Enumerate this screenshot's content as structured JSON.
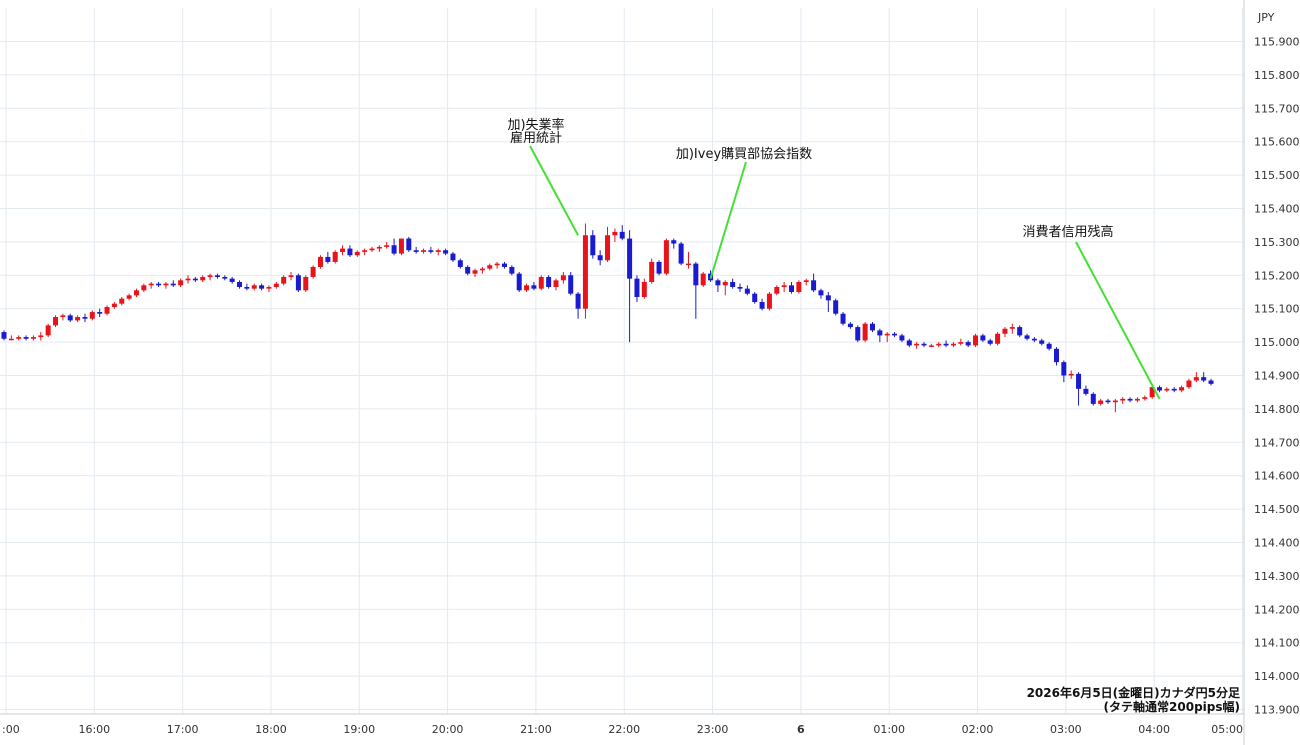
{
  "chart_data": {
    "type": "candlestick",
    "currency_label": "JPY",
    "caption_lines": [
      "2026年6月5日(金曜日)カナダ円5分足",
      "(タテ軸通常200pips幅)"
    ],
    "ylim": [
      113.9,
      115.95
    ],
    "y_ticks": [
      "115.900",
      "115.800",
      "115.700",
      "115.600",
      "115.500",
      "115.400",
      "115.300",
      "115.200",
      "115.100",
      "115.000",
      "114.900",
      "114.800",
      "114.700",
      "114.600",
      "114.500",
      "114.400",
      "114.300",
      "114.200",
      "114.100",
      "114.000",
      "113.900"
    ],
    "x_ticks": [
      ":00",
      "16:00",
      "17:00",
      "18:00",
      "19:00",
      "20:00",
      "21:00",
      "22:00",
      "23:00",
      "6",
      "01:00",
      "02:00",
      "03:00",
      "04:00",
      "05:00"
    ],
    "x_tick_indices": [
      0,
      12,
      24,
      36,
      48,
      60,
      72,
      84,
      96,
      108,
      120,
      132,
      144,
      156,
      168
    ],
    "colors": {
      "up": "#e8141c",
      "down": "#1a1ad0",
      "annotation_line": "#44e033",
      "grid": "#e3eaf0"
    },
    "candles": [
      [
        115.03,
        115.035,
        115.005,
        115.01
      ],
      [
        115.01,
        115.02,
        115.005,
        115.01
      ],
      [
        115.01,
        115.02,
        115.005,
        115.015
      ],
      [
        115.015,
        115.02,
        115.005,
        115.01
      ],
      [
        115.01,
        115.02,
        115.005,
        115.015
      ],
      [
        115.015,
        115.03,
        115.005,
        115.02
      ],
      [
        115.02,
        115.055,
        115.015,
        115.05
      ],
      [
        115.05,
        115.08,
        115.045,
        115.075
      ],
      [
        115.075,
        115.085,
        115.065,
        115.08
      ],
      [
        115.08,
        115.085,
        115.06,
        115.065
      ],
      [
        115.065,
        115.08,
        115.06,
        115.075
      ],
      [
        115.075,
        115.085,
        115.06,
        115.07
      ],
      [
        115.07,
        115.095,
        115.065,
        115.09
      ],
      [
        115.09,
        115.1,
        115.075,
        115.085
      ],
      [
        115.085,
        115.11,
        115.08,
        115.105
      ],
      [
        115.105,
        115.12,
        115.1,
        115.115
      ],
      [
        115.115,
        115.135,
        115.11,
        115.13
      ],
      [
        115.13,
        115.145,
        115.125,
        115.14
      ],
      [
        115.14,
        115.16,
        115.135,
        115.155
      ],
      [
        115.155,
        115.175,
        115.15,
        115.17
      ],
      [
        115.17,
        115.18,
        115.16,
        115.175
      ],
      [
        115.175,
        115.18,
        115.165,
        115.17
      ],
      [
        115.17,
        115.18,
        115.16,
        115.175
      ],
      [
        115.175,
        115.185,
        115.165,
        115.17
      ],
      [
        115.17,
        115.19,
        115.165,
        115.185
      ],
      [
        115.185,
        115.2,
        115.175,
        115.19
      ],
      [
        115.19,
        115.195,
        115.18,
        115.185
      ],
      [
        115.185,
        115.2,
        115.18,
        115.195
      ],
      [
        115.195,
        115.205,
        115.185,
        115.2
      ],
      [
        115.2,
        115.205,
        115.19,
        115.195
      ],
      [
        115.195,
        115.2,
        115.185,
        115.19
      ],
      [
        115.19,
        115.195,
        115.175,
        115.18
      ],
      [
        115.18,
        115.185,
        115.16,
        115.165
      ],
      [
        115.165,
        115.175,
        115.155,
        115.16
      ],
      [
        115.16,
        115.175,
        115.155,
        115.17
      ],
      [
        115.17,
        115.175,
        115.155,
        115.16
      ],
      [
        115.16,
        115.17,
        115.15,
        115.165
      ],
      [
        115.165,
        115.18,
        115.16,
        115.175
      ],
      [
        115.175,
        115.2,
        115.17,
        115.195
      ],
      [
        115.195,
        115.21,
        115.185,
        115.2
      ],
      [
        115.2,
        115.205,
        115.15,
        115.155
      ],
      [
        115.155,
        115.2,
        115.15,
        115.195
      ],
      [
        115.195,
        115.23,
        115.19,
        115.225
      ],
      [
        115.225,
        115.26,
        115.22,
        115.255
      ],
      [
        115.255,
        115.27,
        115.235,
        115.24
      ],
      [
        115.24,
        115.275,
        115.235,
        115.27
      ],
      [
        115.27,
        115.29,
        115.26,
        115.28
      ],
      [
        115.28,
        115.29,
        115.255,
        115.26
      ],
      [
        115.26,
        115.275,
        115.255,
        115.27
      ],
      [
        115.27,
        115.28,
        115.26,
        115.275
      ],
      [
        115.275,
        115.285,
        115.27,
        115.28
      ],
      [
        115.28,
        115.29,
        115.27,
        115.285
      ],
      [
        115.285,
        115.3,
        115.28,
        115.29
      ],
      [
        115.29,
        115.31,
        115.26,
        115.265
      ],
      [
        115.265,
        115.31,
        115.26,
        115.31
      ],
      [
        115.31,
        115.315,
        115.27,
        115.275
      ],
      [
        115.275,
        115.285,
        115.265,
        115.27
      ],
      [
        115.27,
        115.28,
        115.265,
        115.275
      ],
      [
        115.275,
        115.285,
        115.265,
        115.27
      ],
      [
        115.27,
        115.28,
        115.26,
        115.275
      ],
      [
        115.275,
        115.28,
        115.26,
        115.265
      ],
      [
        115.265,
        115.27,
        115.24,
        115.245
      ],
      [
        115.245,
        115.25,
        115.22,
        115.225
      ],
      [
        115.225,
        115.23,
        115.2,
        115.205
      ],
      [
        115.205,
        115.22,
        115.195,
        115.215
      ],
      [
        115.215,
        115.225,
        115.205,
        115.22
      ],
      [
        115.22,
        115.235,
        115.215,
        115.23
      ],
      [
        115.23,
        115.24,
        115.22,
        115.235
      ],
      [
        115.235,
        115.24,
        115.22,
        115.225
      ],
      [
        115.225,
        115.23,
        115.2,
        115.205
      ],
      [
        115.205,
        115.21,
        115.15,
        115.155
      ],
      [
        115.155,
        115.175,
        115.15,
        115.17
      ],
      [
        115.17,
        115.18,
        115.155,
        115.16
      ],
      [
        115.16,
        115.2,
        115.155,
        115.195
      ],
      [
        115.195,
        115.2,
        115.16,
        115.165
      ],
      [
        115.165,
        115.19,
        115.155,
        115.185
      ],
      [
        115.185,
        115.21,
        115.175,
        115.2
      ],
      [
        115.2,
        115.21,
        115.14,
        115.145
      ],
      [
        115.145,
        115.15,
        115.07,
        115.1
      ],
      [
        115.1,
        115.355,
        115.07,
        115.32
      ],
      [
        115.32,
        115.335,
        115.25,
        115.26
      ],
      [
        115.26,
        115.275,
        115.23,
        115.245
      ],
      [
        115.245,
        115.345,
        115.24,
        115.32
      ],
      [
        115.32,
        115.34,
        115.3,
        115.33
      ],
      [
        115.33,
        115.35,
        115.305,
        115.31
      ],
      [
        115.31,
        115.335,
        115.0,
        115.19
      ],
      [
        115.19,
        115.2,
        115.12,
        115.135
      ],
      [
        115.135,
        115.19,
        115.13,
        115.18
      ],
      [
        115.18,
        115.25,
        115.175,
        115.24
      ],
      [
        115.24,
        115.245,
        115.2,
        115.205
      ],
      [
        115.205,
        115.31,
        115.2,
        115.305
      ],
      [
        115.305,
        115.31,
        115.28,
        115.295
      ],
      [
        115.295,
        115.3,
        115.23,
        115.235
      ],
      [
        115.235,
        115.27,
        115.22,
        115.235
      ],
      [
        115.235,
        115.24,
        115.07,
        115.17
      ],
      [
        115.17,
        115.21,
        115.165,
        115.205
      ],
      [
        115.205,
        115.215,
        115.18,
        115.185
      ],
      [
        115.185,
        115.19,
        115.15,
        115.17
      ],
      [
        115.17,
        115.185,
        115.14,
        115.18
      ],
      [
        115.18,
        115.19,
        115.16,
        115.165
      ],
      [
        115.165,
        115.175,
        115.15,
        115.16
      ],
      [
        115.16,
        115.17,
        115.14,
        115.145
      ],
      [
        115.145,
        115.15,
        115.115,
        115.12
      ],
      [
        115.12,
        115.13,
        115.095,
        115.1
      ],
      [
        115.1,
        115.15,
        115.095,
        115.145
      ],
      [
        115.145,
        115.17,
        115.14,
        115.165
      ],
      [
        115.165,
        115.18,
        115.15,
        115.17
      ],
      [
        115.17,
        115.18,
        115.145,
        115.15
      ],
      [
        115.15,
        115.185,
        115.145,
        115.18
      ],
      [
        115.18,
        115.19,
        115.17,
        115.185
      ],
      [
        115.185,
        115.205,
        115.15,
        115.155
      ],
      [
        115.155,
        115.16,
        115.13,
        115.14
      ],
      [
        115.14,
        115.15,
        115.09,
        115.125
      ],
      [
        115.125,
        115.13,
        115.08,
        115.085
      ],
      [
        115.085,
        115.09,
        115.05,
        115.055
      ],
      [
        115.055,
        115.06,
        115.04,
        115.045
      ],
      [
        115.045,
        115.05,
        115.0,
        115.005
      ],
      [
        115.005,
        115.06,
        115.0,
        115.055
      ],
      [
        115.055,
        115.06,
        115.03,
        115.035
      ],
      [
        115.035,
        115.04,
        115.0,
        115.02
      ],
      [
        115.02,
        115.03,
        115.0,
        115.025
      ],
      [
        115.025,
        115.03,
        115.015,
        115.02
      ],
      [
        115.02,
        115.025,
        115.0,
        115.005
      ],
      [
        115.005,
        115.01,
        114.985,
        114.99
      ],
      [
        114.99,
        115.0,
        114.98,
        114.995
      ],
      [
        114.995,
        115.0,
        114.985,
        114.99
      ],
      [
        114.99,
        114.995,
        114.985,
        114.99
      ],
      [
        114.99,
        115.0,
        114.985,
        114.995
      ],
      [
        114.995,
        115.005,
        114.985,
        114.99
      ],
      [
        114.99,
        115.0,
        114.985,
        114.995
      ],
      [
        114.995,
        115.01,
        114.99,
        115.0
      ],
      [
        115.0,
        115.005,
        114.985,
        114.99
      ],
      [
        114.99,
        115.025,
        114.985,
        115.02
      ],
      [
        115.02,
        115.025,
        115.0,
        115.005
      ],
      [
        115.005,
        115.01,
        114.99,
        114.995
      ],
      [
        114.995,
        115.03,
        114.99,
        115.025
      ],
      [
        115.025,
        115.045,
        115.015,
        115.04
      ],
      [
        115.04,
        115.055,
        115.025,
        115.045
      ],
      [
        115.045,
        115.05,
        115.015,
        115.02
      ],
      [
        115.02,
        115.025,
        115.005,
        115.01
      ],
      [
        115.01,
        115.015,
        115.0,
        115.005
      ],
      [
        115.005,
        115.01,
        114.99,
        114.995
      ],
      [
        114.995,
        115.0,
        114.975,
        114.98
      ],
      [
        114.98,
        114.985,
        114.93,
        114.94
      ],
      [
        114.94,
        114.945,
        114.88,
        114.9
      ],
      [
        114.9,
        114.915,
        114.89,
        114.905
      ],
      [
        114.905,
        114.91,
        114.81,
        114.86
      ],
      [
        114.86,
        114.87,
        114.84,
        114.845
      ],
      [
        114.845,
        114.85,
        114.81,
        114.815
      ],
      [
        114.815,
        114.83,
        114.81,
        114.825
      ],
      [
        114.825,
        114.83,
        114.815,
        114.82
      ],
      [
        114.82,
        114.83,
        114.79,
        114.825
      ],
      [
        114.825,
        114.835,
        114.815,
        114.83
      ],
      [
        114.83,
        114.835,
        114.82,
        114.825
      ],
      [
        114.825,
        114.835,
        114.82,
        114.83
      ],
      [
        114.83,
        114.84,
        114.825,
        114.835
      ],
      [
        114.835,
        114.87,
        114.83,
        114.865
      ],
      [
        114.865,
        114.87,
        114.85,
        114.855
      ],
      [
        114.855,
        114.865,
        114.85,
        114.86
      ],
      [
        114.86,
        114.865,
        114.85,
        114.855
      ],
      [
        114.855,
        114.87,
        114.85,
        114.865
      ],
      [
        114.865,
        114.89,
        114.86,
        114.885
      ],
      [
        114.885,
        114.91,
        114.88,
        114.895
      ],
      [
        114.895,
        114.91,
        114.88,
        114.885
      ],
      [
        114.885,
        114.89,
        114.87,
        114.875
      ]
    ],
    "annotations": [
      {
        "lines": [
          "加)失業率",
          "雇用統計"
        ],
        "target_index": 78,
        "target_price": 115.32
      },
      {
        "lines": [
          "加)Ivey購買部協会指数"
        ],
        "target_index": 96,
        "target_price": 115.19
      },
      {
        "lines": [
          "消費者信用残高"
        ],
        "target_index": 157,
        "target_price": 114.83
      }
    ]
  }
}
